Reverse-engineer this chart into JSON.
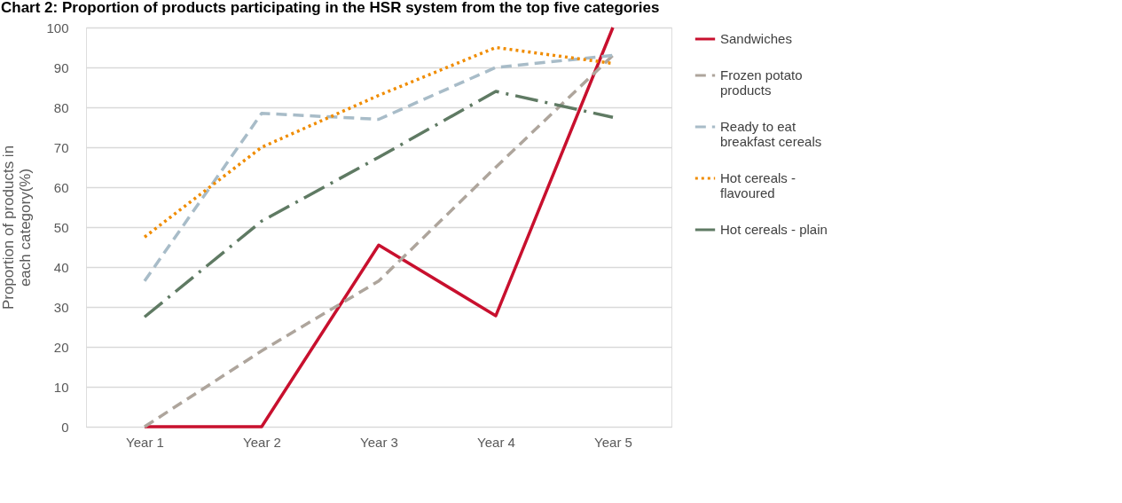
{
  "chart_data": {
    "type": "line",
    "title": "Chart 2: Proportion of products participating in the HSR system from the top five categories",
    "ylabel": "Proportion of products in each category(%)",
    "categories": [
      "Year 1",
      "Year 2",
      "Year 3",
      "Year 4",
      "Year 5"
    ],
    "series": [
      {
        "name": "Sandwiches",
        "color": "#c8102e",
        "line_style": "solid",
        "values": [
          0,
          0,
          45.5,
          27.8,
          100
        ]
      },
      {
        "name": "Frozen potato products",
        "color": "#aea59c",
        "line_style": "dashed",
        "values": [
          0,
          19,
          36.5,
          65,
          93
        ]
      },
      {
        "name": "Ready to eat breakfast cereals",
        "color": "#a8bcc8",
        "line_style": "dashed",
        "values": [
          36.5,
          78.5,
          77,
          90,
          93
        ]
      },
      {
        "name": "Hot cereals - flavoured",
        "color": "#f08c00",
        "line_style": "dotted",
        "values": [
          47.5,
          70,
          83,
          95,
          91
        ]
      },
      {
        "name": "Hot cereals - plain",
        "color": "#5f7a63",
        "line_style": "dashdot",
        "values": [
          27.5,
          51.5,
          67.5,
          84,
          77.5
        ]
      }
    ],
    "ylim": [
      0,
      100
    ],
    "yticks": [
      0,
      10,
      20,
      30,
      40,
      50,
      60,
      70,
      80,
      90,
      100
    ],
    "grid": "y",
    "legend": "right",
    "marker": "none"
  }
}
